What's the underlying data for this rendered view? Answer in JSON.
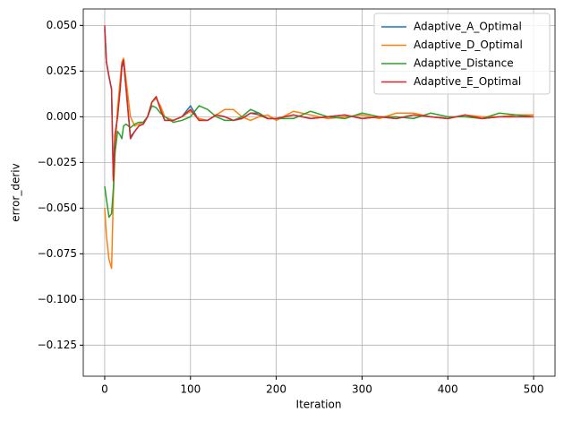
{
  "chart_data": {
    "type": "line",
    "xlabel": "Iteration",
    "ylabel": "error_deriv",
    "x": [
      0,
      2,
      5,
      8,
      10,
      12,
      15,
      18,
      20,
      22,
      25,
      30,
      35,
      40,
      45,
      50,
      55,
      60,
      65,
      70,
      80,
      90,
      100,
      110,
      120,
      130,
      140,
      150,
      160,
      170,
      180,
      190,
      200,
      220,
      240,
      260,
      280,
      300,
      320,
      340,
      360,
      380,
      400,
      420,
      440,
      460,
      480,
      500
    ],
    "series": [
      {
        "name": "Adaptive_A_Optimal",
        "color": "#1f77b4",
        "values": [
          0.048,
          0.03,
          0.022,
          0.015,
          -0.033,
          -0.01,
          0.0,
          0.015,
          0.027,
          0.03,
          0.015,
          -0.011,
          -0.008,
          -0.005,
          -0.004,
          0.0,
          0.008,
          0.011,
          0.004,
          -0.002,
          -0.002,
          0.0,
          0.006,
          -0.002,
          -0.002,
          0.001,
          0.0,
          -0.002,
          -0.001,
          0.002,
          0.002,
          -0.001,
          -0.001,
          0.001,
          -0.001,
          0.0,
          0.001,
          -0.001,
          0.0,
          -0.001,
          0.001,
          0.0,
          -0.001,
          0.001,
          -0.001,
          0.0,
          0.0,
          0.0
        ]
      },
      {
        "name": "Adaptive_D_Optimal",
        "color": "#ff7f0e",
        "values": [
          -0.05,
          -0.065,
          -0.078,
          -0.083,
          -0.045,
          -0.02,
          0.005,
          0.02,
          0.03,
          0.032,
          0.02,
          0.0,
          -0.005,
          -0.004,
          -0.003,
          0.0,
          0.008,
          0.01,
          0.006,
          0.0,
          -0.002,
          0.0,
          0.003,
          -0.001,
          -0.002,
          0.001,
          0.004,
          0.004,
          0.0,
          -0.002,
          0.0,
          0.001,
          -0.002,
          0.003,
          0.001,
          -0.001,
          0.0,
          0.001,
          -0.001,
          0.002,
          0.002,
          0.0,
          -0.001,
          0.001,
          0.0,
          0.0,
          0.001,
          0.001
        ]
      },
      {
        "name": "Adaptive_Distance",
        "color": "#2ca02c",
        "values": [
          -0.038,
          -0.045,
          -0.055,
          -0.053,
          -0.04,
          -0.02,
          -0.008,
          -0.01,
          -0.012,
          -0.005,
          -0.004,
          -0.006,
          -0.004,
          -0.003,
          -0.003,
          0.0,
          0.006,
          0.005,
          0.002,
          0.0,
          -0.003,
          -0.002,
          0.0,
          0.006,
          0.004,
          0.0,
          -0.002,
          -0.002,
          0.0,
          0.004,
          0.002,
          -0.001,
          -0.001,
          -0.001,
          0.003,
          0.0,
          -0.001,
          0.002,
          0.0,
          0.0,
          -0.001,
          0.002,
          0.0,
          0.0,
          -0.001,
          0.002,
          0.001,
          0.0
        ]
      },
      {
        "name": "Adaptive_E_Optimal",
        "color": "#d62728",
        "values": [
          0.05,
          0.03,
          0.022,
          0.015,
          -0.035,
          -0.01,
          0.0,
          0.015,
          0.028,
          0.031,
          0.015,
          -0.012,
          -0.008,
          -0.005,
          -0.004,
          0.0,
          0.008,
          0.011,
          0.004,
          -0.002,
          -0.002,
          0.0,
          0.004,
          -0.002,
          -0.002,
          0.001,
          0.0,
          -0.002,
          -0.001,
          0.002,
          0.001,
          -0.001,
          -0.001,
          0.001,
          -0.001,
          0.0,
          0.001,
          -0.001,
          0.0,
          -0.001,
          0.001,
          0.0,
          -0.001,
          0.001,
          -0.001,
          0.0,
          0.0,
          0.0
        ]
      }
    ],
    "xlim": [
      -25,
      525
    ],
    "xticks": [
      0,
      100,
      200,
      300,
      400,
      500
    ],
    "ylim": [
      -0.142,
      0.059
    ],
    "yticks": [
      {
        "value": -0.125,
        "label": "−0.125"
      },
      {
        "value": -0.1,
        "label": "−0.100"
      },
      {
        "value": -0.075,
        "label": "−0.075"
      },
      {
        "value": -0.05,
        "label": "−0.050"
      },
      {
        "value": -0.025,
        "label": "−0.025"
      },
      {
        "value": 0,
        "label": "0.000"
      },
      {
        "value": 0.025,
        "label": "0.025"
      },
      {
        "value": 0.05,
        "label": "0.050"
      }
    ],
    "grid": true,
    "legend": "upper right"
  }
}
